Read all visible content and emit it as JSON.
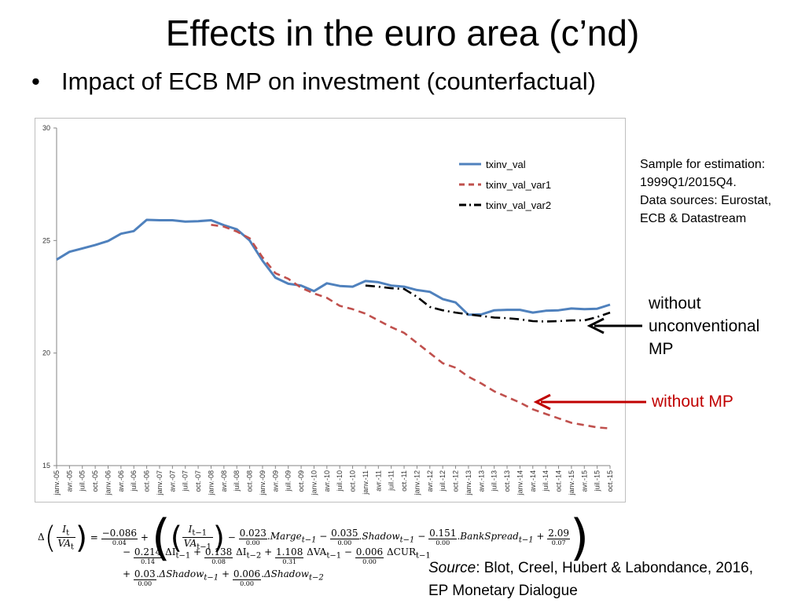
{
  "slide": {
    "title": "Effects in the euro area (c’nd)",
    "bullet": "Impact of ECB MP on investment (counterfactual)",
    "bullet_symbol": "•"
  },
  "notes": {
    "sample_line1": "Sample for estimation:",
    "sample_line2": "1999Q1/2015Q4.",
    "sources_line1": "Data sources: Eurostat,",
    "sources_line2": "ECB & Datastream"
  },
  "annotations": {
    "unconv_line1": "without",
    "unconv_line2": "unconventional",
    "unconv_line3": "MP",
    "no_mp": "without MP",
    "no_mp_color": "#c00000",
    "unconv_color": "#000000"
  },
  "source": {
    "label": "Source",
    "rest": ": Blot, Creel, Hubert & Labondance, 2016,",
    "line2": "EP Monetary Dialogue"
  },
  "equation": {
    "lhs_num": "I",
    "lhs_num_sub": "t",
    "lhs_den": "VA",
    "lhs_den_sub": "t",
    "c0": "−0.086",
    "c0_se": "0.04",
    "frac_num": "I",
    "frac_num_sub": "t−1",
    "frac_den": "VA",
    "frac_den_sub": "t−1",
    "c1": "0.023",
    "c1_se": "0.00",
    "v1": "Marge",
    "v1_sub": "t−1",
    "c2": "0.035",
    "c2_se": "0.00",
    "v2": "Shadow",
    "v2_sub": "t−1",
    "c3": "0.151",
    "c3_se": "0.00",
    "v3": "BankSpread",
    "v3_sub": "t−1",
    "c4": "2.09",
    "c4_se": "0.07",
    "c5": "0.214",
    "c5_se": "0.14",
    "v5": "ΔI",
    "v5_sub": "t−1",
    "c6": "0.138",
    "c6_se": "0.08",
    "v6": "ΔI",
    "v6_sub": "t−2",
    "c7": "1.108",
    "c7_se": "0.31",
    "v7": "ΔVA",
    "v7_sub": "t−1",
    "c8": "0.006",
    "c8_se": "0.00",
    "v8": "ΔCUR",
    "v8_sub": "t−1",
    "c9": "0.03",
    "c9_se": "0.00",
    "v9": "ΔShadow",
    "v9_sub": "t−1",
    "c10": "0.006",
    "c10_se": "0.00",
    "v10": "ΔShadow",
    "v10_sub": "t−2"
  },
  "chart_data": {
    "type": "line",
    "categories": [
      "janv.-05",
      "avr.-05",
      "juil.-05",
      "oct.-05",
      "janv.-06",
      "avr.-06",
      "juil.-06",
      "oct.-06",
      "janv.-07",
      "avr.-07",
      "juil.-07",
      "oct.-07",
      "janv.-08",
      "avr.-08",
      "juil.-08",
      "oct.-08",
      "janv.-09",
      "avr.-09",
      "juil.-09",
      "oct.-09",
      "janv.-10",
      "avr.-10",
      "juil.-10",
      "oct.-10",
      "janv.-11",
      "avr.-11",
      "juil.-11",
      "oct.-11",
      "janv.-12",
      "avr.-12",
      "juil.-12",
      "oct.-12",
      "janv.-13",
      "avr.-13",
      "juil.-13",
      "oct.-13",
      "janv.-14",
      "avr.-14",
      "juil.-14",
      "oct.-14",
      "janv.-15",
      "avr.-15",
      "juil.-15",
      "oct.-15"
    ],
    "ylim": [
      15,
      30
    ],
    "yticks": [
      "15",
      "20",
      "25",
      "30"
    ],
    "grid": false,
    "legend_position": "top-right",
    "series": [
      {
        "name": "txinv_val",
        "color": "#4f81bd",
        "dash": "solid",
        "values": [
          24.15,
          24.5,
          24.65,
          24.8,
          24.98,
          25.3,
          25.42,
          25.92,
          25.9,
          25.9,
          25.84,
          25.86,
          25.9,
          25.68,
          25.5,
          25.0,
          24.1,
          23.35,
          23.08,
          23.0,
          22.75,
          23.1,
          22.98,
          22.95,
          23.2,
          23.15,
          23.0,
          22.95,
          22.8,
          22.72,
          22.4,
          22.25,
          21.7,
          21.72,
          21.9,
          21.92,
          21.92,
          21.8,
          21.88,
          21.9,
          21.98,
          21.95,
          21.97,
          22.15
        ]
      },
      {
        "name": "txinv_val_var1",
        "color": "#c0504d",
        "dash": "dash",
        "values": [
          null,
          null,
          null,
          null,
          null,
          null,
          null,
          null,
          null,
          null,
          null,
          null,
          25.7,
          25.62,
          25.4,
          25.1,
          24.25,
          23.55,
          23.3,
          22.9,
          22.65,
          22.45,
          22.1,
          21.95,
          21.75,
          21.45,
          21.15,
          20.9,
          20.45,
          20.0,
          19.55,
          19.35,
          18.95,
          18.65,
          18.3,
          18.05,
          17.8,
          17.5,
          17.3,
          17.1,
          16.9,
          16.8,
          16.7,
          16.65
        ]
      },
      {
        "name": "txinv_val_var2",
        "color": "#000000",
        "dash": "dashdot",
        "values": [
          null,
          null,
          null,
          null,
          null,
          null,
          null,
          null,
          null,
          null,
          null,
          null,
          null,
          null,
          null,
          null,
          null,
          null,
          null,
          null,
          null,
          null,
          null,
          null,
          23.0,
          22.95,
          22.88,
          22.85,
          22.5,
          22.05,
          21.9,
          21.8,
          21.72,
          21.65,
          21.58,
          21.55,
          21.5,
          21.42,
          21.4,
          21.42,
          21.45,
          21.45,
          21.6,
          21.8
        ]
      }
    ]
  }
}
